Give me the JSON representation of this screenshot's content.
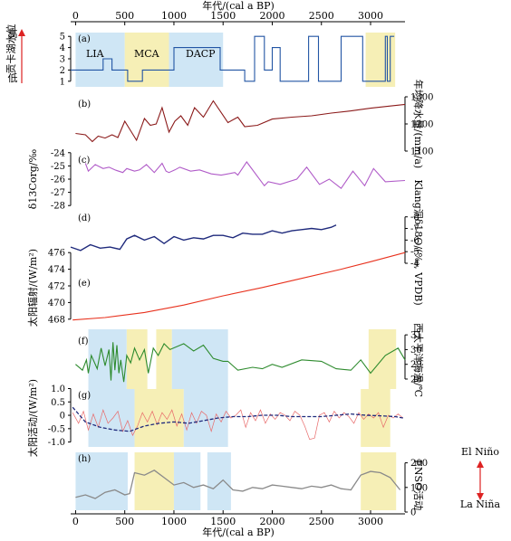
{
  "figure": {
    "x_axis_title_top": "年代/(cal a BP)",
    "x_axis_title_bottom": "年代/(cal a BP)",
    "top_ticks": [
      "0",
      "500",
      "1000",
      "1500",
      "2000",
      "2500",
      "3000"
    ],
    "bottom_ticks": [
      "0",
      "500",
      "1000",
      "1500",
      "2000",
      "2500",
      "3000"
    ],
    "legend_right": {
      "top": "El Niño",
      "bottom": "La Niña"
    },
    "colors": {
      "blue_band": "#cfe6f5",
      "yellow_band": "#f6efb6",
      "lake": "#2255a4",
      "precip": "#8b1a1a",
      "d13c": "#b05bc8",
      "d18o": "#1f2a7c",
      "solar": "#e8321e",
      "sst": "#2e8b2e",
      "activity_thin": "#e86a6a",
      "activity_dash": "#1f2a7c",
      "enso": "#8a8a8a"
    }
  },
  "chart_data": [
    {
      "type": "line",
      "panel": "(a)",
      "ylabel_left": "贡卡湖水位",
      "ylabel_high": "高",
      "ylabel_low": "低",
      "ylim": [
        0.5,
        5.5
      ],
      "yticks": [
        "1",
        "2",
        "3",
        "4",
        "5"
      ],
      "annotations": [
        "LIA",
        "MCA",
        "DACP"
      ],
      "bands": [
        {
          "start": 0,
          "end": 500,
          "color": "blue"
        },
        {
          "start": 500,
          "end": 950,
          "color": "yellow"
        },
        {
          "start": 950,
          "end": 1500,
          "color": "blue"
        },
        {
          "start": 2950,
          "end": 3250,
          "color": "yellow"
        }
      ],
      "x": [
        -50,
        280,
        280,
        370,
        370,
        530,
        530,
        680,
        680,
        1000,
        1000,
        1470,
        1470,
        1720,
        1720,
        1820,
        1820,
        1920,
        1920,
        2000,
        2000,
        2080,
        2080,
        2370,
        2370,
        2470,
        2470,
        2700,
        2700,
        2920,
        2920,
        3150,
        3150,
        3170,
        3170,
        3200,
        3200,
        3240
      ],
      "values": [
        2,
        2,
        3,
        3,
        2,
        2,
        1,
        1,
        2,
        2,
        4,
        4,
        2,
        2,
        1,
        1,
        5,
        5,
        2,
        2,
        4,
        4,
        1,
        1,
        5,
        5,
        1,
        1,
        5,
        5,
        1,
        1,
        5,
        5,
        1,
        1,
        5,
        5
      ]
    },
    {
      "type": "line",
      "panel": "(b)",
      "ylabel_right": "年均降水量/(mm/a)",
      "ylim": [
        1070,
        1330
      ],
      "yticks": [
        "1100",
        "1200",
        "1300"
      ],
      "x": [
        0,
        100,
        170,
        230,
        300,
        370,
        430,
        500,
        560,
        620,
        700,
        760,
        820,
        880,
        950,
        1010,
        1070,
        1140,
        1210,
        1300,
        1400,
        1550,
        1650,
        1720,
        1850,
        2000,
        2200,
        2400,
        2600,
        2800,
        3000,
        3200,
        3350
      ],
      "values": [
        1165,
        1160,
        1135,
        1155,
        1148,
        1160,
        1150,
        1210,
        1175,
        1140,
        1220,
        1195,
        1200,
        1260,
        1170,
        1210,
        1230,
        1195,
        1260,
        1225,
        1285,
        1205,
        1225,
        1190,
        1195,
        1218,
        1225,
        1230,
        1240,
        1248,
        1258,
        1266,
        1272
      ]
    },
    {
      "type": "line",
      "panel": "(c)",
      "ylabel_left": "δ13Corg/‰",
      "ylim": [
        -28.6,
        -23.4
      ],
      "yticks": [
        "-28",
        "-27",
        "-26",
        "-25",
        "-24"
      ],
      "x": [
        100,
        130,
        200,
        280,
        340,
        400,
        480,
        520,
        600,
        650,
        720,
        800,
        880,
        920,
        950,
        1010,
        1060,
        1170,
        1260,
        1380,
        1480,
        1620,
        1650,
        1740,
        1920,
        1960,
        2080,
        2250,
        2350,
        2480,
        2580,
        2700,
        2820,
        2940,
        3030,
        3150,
        3350
      ],
      "values": [
        -24.8,
        -25.4,
        -24.9,
        -25.2,
        -25.1,
        -25.3,
        -25.5,
        -25.2,
        -25.4,
        -25.3,
        -24.9,
        -25.5,
        -24.8,
        -25.4,
        -25.5,
        -25.3,
        -25.1,
        -25.4,
        -25.3,
        -25.6,
        -25.7,
        -25.5,
        -25.7,
        -24.7,
        -26.5,
        -26.2,
        -26.4,
        -26.0,
        -25.1,
        -26.4,
        -26.0,
        -26.7,
        -25.4,
        -26.5,
        -25.2,
        -26.2,
        -26.1
      ]
    },
    {
      "type": "line",
      "panel": "(d)",
      "ylabel_right": "Klang洞δ18O/(‰, VPDB)",
      "ylim": [
        -3.3,
        -8.6
      ],
      "yticks": [
        "-4",
        "-5",
        "-6",
        "-7",
        "-8"
      ],
      "x": [
        -50,
        50,
        150,
        250,
        350,
        450,
        520,
        600,
        700,
        800,
        900,
        1000,
        1100,
        1200,
        1300,
        1400,
        1500,
        1600,
        1700,
        1800,
        1900,
        2000,
        2100,
        2200,
        2300,
        2400,
        2500,
        2600,
        2650
      ],
      "values": [
        -5.4,
        -5.1,
        -5.6,
        -5.3,
        -5.4,
        -5.2,
        -6.1,
        -6.4,
        -6.0,
        -6.3,
        -5.7,
        -6.3,
        -6.0,
        -6.2,
        -6.1,
        -6.4,
        -6.4,
        -6.2,
        -6.6,
        -6.5,
        -6.5,
        -6.8,
        -6.6,
        -6.8,
        -6.9,
        -7.0,
        -6.9,
        -7.1,
        -7.3
      ]
    },
    {
      "type": "line",
      "panel": "(e)",
      "ylabel_left": "太阳辐射/(W/m²)",
      "ylim": [
        467,
        477
      ],
      "yticks": [
        "468",
        "470",
        "472",
        "474",
        "476"
      ],
      "x": [
        -30,
        300,
        700,
        1100,
        1500,
        1900,
        2300,
        2700,
        3000,
        3350
      ],
      "values": [
        467.9,
        468.2,
        468.8,
        469.7,
        470.8,
        471.8,
        472.9,
        474.0,
        474.9,
        476.0
      ]
    },
    {
      "type": "line",
      "panel": "(f)",
      "ylabel_right": "西太平洋海温/℃",
      "ylim": [
        27.2,
        31.5
      ],
      "yticks": [
        "28",
        "29",
        "30",
        "31"
      ],
      "bands": [
        {
          "start": 130,
          "end": 520,
          "color": "blue"
        },
        {
          "start": 520,
          "end": 730,
          "color": "yellow"
        },
        {
          "start": 820,
          "end": 980,
          "color": "yellow"
        },
        {
          "start": 980,
          "end": 1550,
          "color": "blue"
        },
        {
          "start": 2980,
          "end": 3260,
          "color": "yellow"
        }
      ],
      "x": [
        0,
        70,
        110,
        130,
        160,
        220,
        260,
        300,
        340,
        360,
        380,
        400,
        420,
        440,
        460,
        490,
        520,
        560,
        600,
        650,
        700,
        740,
        790,
        840,
        900,
        960,
        1100,
        1200,
        1300,
        1400,
        1500,
        1550,
        1650,
        1800,
        1900,
        2000,
        2100,
        2300,
        2500,
        2650,
        2800,
        2900,
        3000,
        3150,
        3280,
        3350
      ],
      "values": [
        29.0,
        28.6,
        29.3,
        28.4,
        29.6,
        28.7,
        30.1,
        28.9,
        30.0,
        27.9,
        30.5,
        28.6,
        30.3,
        28.4,
        29.3,
        27.8,
        29.6,
        29.1,
        30.1,
        29.3,
        30.0,
        28.4,
        30.1,
        29.6,
        30.4,
        30.0,
        30.4,
        29.9,
        30.3,
        29.4,
        29.2,
        29.2,
        28.6,
        28.8,
        28.7,
        29.0,
        28.8,
        29.3,
        29.2,
        28.7,
        28.6,
        29.3,
        28.4,
        29.6,
        30.1,
        29.3
      ]
    },
    {
      "type": "line",
      "panel": "(g)",
      "ylabel_left": "太阳活动/(W/m²)",
      "ylim": [
        -1.25,
        1.05
      ],
      "yticks": [
        "1.0",
        "0.5",
        "0",
        "-0.5",
        "-1.0"
      ],
      "bands": [
        {
          "start": 130,
          "end": 600,
          "color": "blue"
        },
        {
          "start": 600,
          "end": 1100,
          "color": "yellow"
        },
        {
          "start": 1100,
          "end": 1550,
          "color": "blue"
        },
        {
          "start": 2900,
          "end": 3200,
          "color": "yellow"
        }
      ],
      "series": [
        {
          "style": "thin",
          "x": [
            -30,
            30,
            80,
            130,
            180,
            230,
            280,
            330,
            380,
            430,
            480,
            530,
            580,
            630,
            680,
            730,
            780,
            830,
            880,
            930,
            980,
            1030,
            1080,
            1130,
            1180,
            1230,
            1280,
            1330,
            1380,
            1430,
            1480,
            1530,
            1580,
            1630,
            1680,
            1730,
            1780,
            1830,
            1880,
            1930,
            1980,
            2030,
            2080,
            2130,
            2180,
            2230,
            2280,
            2330,
            2380,
            2430,
            2480,
            2530,
            2580,
            2630,
            2680,
            2730,
            2780,
            2830,
            2880,
            2930,
            2980,
            3030,
            3080,
            3130,
            3180,
            3230,
            3280,
            3330
          ],
          "values": [
            0.1,
            -0.3,
            0.15,
            -0.55,
            0.05,
            -0.45,
            0.2,
            -0.3,
            -0.1,
            0.15,
            -0.6,
            -0.2,
            -0.75,
            -0.4,
            0.1,
            -0.25,
            0.15,
            -0.35,
            0.1,
            -0.15,
            0.2,
            -0.4,
            0.05,
            -0.55,
            0.1,
            -0.3,
            0.15,
            0.0,
            -0.6,
            0.05,
            -0.25,
            0.15,
            -0.1,
            0.0,
            0.2,
            -0.45,
            0.1,
            -0.2,
            0.2,
            -0.3,
            0.05,
            -0.15,
            0.1,
            0.0,
            -0.2,
            0.15,
            0.0,
            -0.4,
            -0.9,
            -0.85,
            0.0,
            0.1,
            -0.25,
            0.15,
            -0.1,
            0.1,
            -0.05,
            -0.3,
            0.1,
            -0.15,
            0.05,
            -0.1,
            0.1,
            -0.45,
            0.0,
            -0.1,
            0.05,
            -0.1
          ]
        },
        {
          "style": "dashed",
          "x": [
            -30,
            100,
            250,
            400,
            550,
            700,
            850,
            1000,
            1150,
            1300,
            1450,
            1600,
            1750,
            1900,
            2050,
            2200,
            2350,
            2500,
            2650,
            2800,
            2950,
            3100,
            3250,
            3330
          ],
          "values": [
            0.3,
            -0.25,
            -0.45,
            -0.55,
            -0.6,
            -0.4,
            -0.3,
            -0.25,
            -0.3,
            -0.2,
            -0.1,
            -0.05,
            -0.05,
            0.0,
            0.0,
            -0.05,
            -0.05,
            -0.05,
            0.0,
            0.05,
            0.0,
            -0.02,
            -0.05,
            -0.1
          ]
        }
      ]
    },
    {
      "type": "line",
      "panel": "(h)",
      "ylabel_right": "ENSO活动",
      "ylim": [
        0,
        250
      ],
      "yticks": [
        "0",
        "100",
        "200"
      ],
      "bands": [
        {
          "start": 0,
          "end": 530,
          "color": "blue"
        },
        {
          "start": 600,
          "end": 1000,
          "color": "yellow"
        },
        {
          "start": 1000,
          "end": 1270,
          "color": "blue"
        },
        {
          "start": 1340,
          "end": 1580,
          "color": "blue"
        },
        {
          "start": 2900,
          "end": 3260,
          "color": "yellow"
        }
      ],
      "x": [
        0,
        100,
        200,
        300,
        400,
        500,
        550,
        600,
        700,
        800,
        900,
        1000,
        1100,
        1200,
        1300,
        1400,
        1500,
        1600,
        1700,
        1800,
        1900,
        2000,
        2100,
        2200,
        2300,
        2400,
        2500,
        2600,
        2700,
        2800,
        2900,
        3000,
        3100,
        3200,
        3300
      ],
      "values": [
        60,
        70,
        55,
        80,
        90,
        70,
        75,
        160,
        150,
        170,
        140,
        110,
        120,
        100,
        110,
        95,
        130,
        90,
        85,
        100,
        95,
        110,
        105,
        100,
        95,
        105,
        100,
        110,
        95,
        90,
        150,
        165,
        160,
        140,
        90
      ]
    }
  ]
}
